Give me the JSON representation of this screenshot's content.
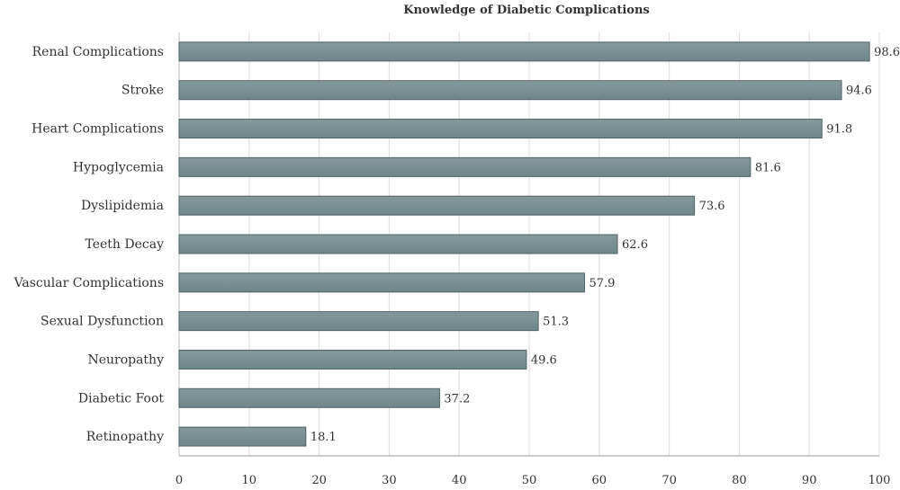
{
  "chart_data": {
    "type": "bar",
    "orientation": "horizontal",
    "title": "Knowledge of Diabetic Complications",
    "categories": [
      "Renal Complications",
      "Stroke",
      "Heart Complications",
      "Hypoglycemia",
      "Dyslipidemia",
      "Teeth Decay",
      "Vascular Complications",
      "Sexual Dysfunction",
      "Neuropathy",
      "Diabetic Foot",
      "Retinopathy"
    ],
    "values": [
      98.6,
      94.6,
      91.8,
      81.6,
      73.6,
      62.6,
      57.9,
      51.3,
      49.6,
      37.2,
      18.1
    ],
    "xlim": [
      0,
      100
    ],
    "xticks": [
      0,
      10,
      20,
      30,
      40,
      50,
      60,
      70,
      80,
      90,
      100
    ],
    "xlabel": "",
    "ylabel": "",
    "grid": "vertical",
    "bar_color": "#6f878a",
    "bar_color_light": "#85999c",
    "bar_border": "#4f6266"
  }
}
